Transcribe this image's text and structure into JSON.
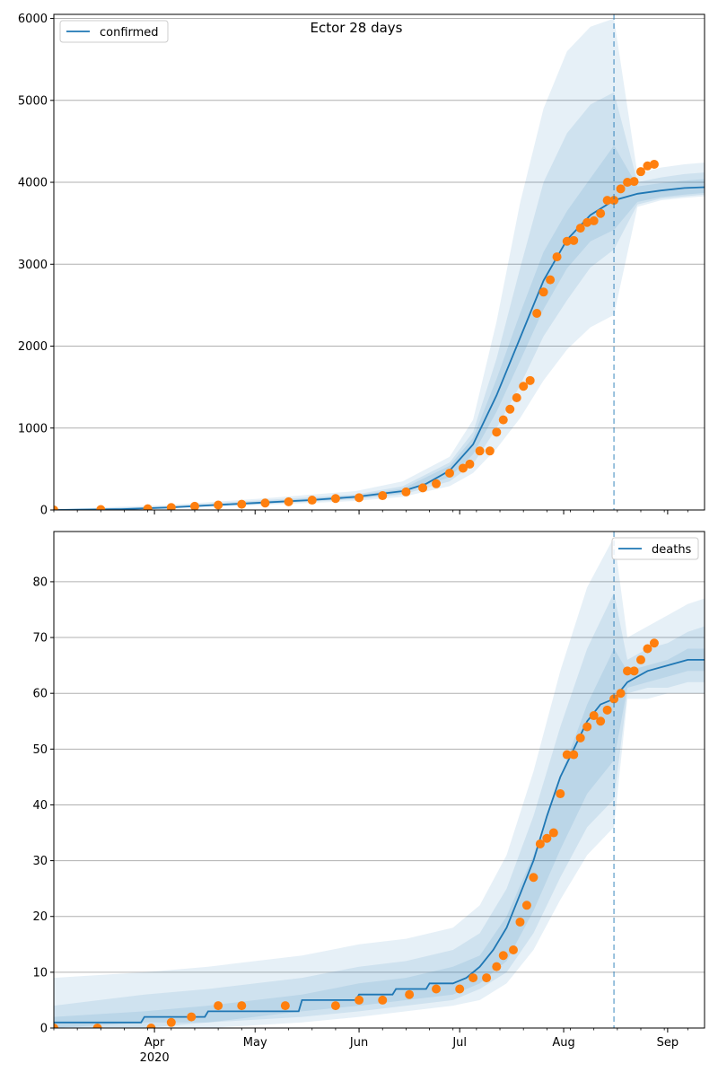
{
  "figure": {
    "title": "Ector 28 days"
  },
  "chart_data": [
    {
      "type": "line",
      "title": "Ector 28 days",
      "xlabel": "",
      "ylabel": "",
      "xlim": [
        "2020-03-02",
        "2020-09-12"
      ],
      "ylim": [
        0,
        6050
      ],
      "yticks": [
        0,
        1000,
        2000,
        3000,
        4000,
        5000,
        6000
      ],
      "grid": "horizontal",
      "legend": "top-left",
      "forecast_start": "2020-08-16",
      "series": [
        {
          "name": "confirmed",
          "color": "#1f77b4",
          "x": [
            "2020-03-02",
            "2020-03-22",
            "2020-04-05",
            "2020-04-19",
            "2020-05-03",
            "2020-05-17",
            "2020-05-31",
            "2020-06-14",
            "2020-06-21",
            "2020-06-28",
            "2020-07-05",
            "2020-07-12",
            "2020-07-19",
            "2020-07-26",
            "2020-08-02",
            "2020-08-09",
            "2020-08-16",
            "2020-08-23",
            "2020-08-30",
            "2020-09-06",
            "2020-09-12"
          ],
          "y": [
            0,
            10,
            30,
            60,
            90,
            120,
            160,
            230,
            320,
            480,
            800,
            1400,
            2100,
            2800,
            3300,
            3600,
            3780,
            3860,
            3900,
            3930,
            3940
          ]
        },
        {
          "name": "",
          "kind": "observed",
          "color": "#ff7f0e",
          "x": [
            "2020-03-02",
            "2020-03-16",
            "2020-03-30",
            "2020-04-06",
            "2020-04-13",
            "2020-04-20",
            "2020-04-27",
            "2020-05-04",
            "2020-05-11",
            "2020-05-18",
            "2020-05-25",
            "2020-06-01",
            "2020-06-08",
            "2020-06-15",
            "2020-06-20",
            "2020-06-24",
            "2020-06-28",
            "2020-07-02",
            "2020-07-04",
            "2020-07-07",
            "2020-07-10",
            "2020-07-12",
            "2020-07-14",
            "2020-07-16",
            "2020-07-18",
            "2020-07-20",
            "2020-07-22",
            "2020-07-24",
            "2020-07-26",
            "2020-07-28",
            "2020-07-30",
            "2020-08-02",
            "2020-08-04",
            "2020-08-06",
            "2020-08-08",
            "2020-08-10",
            "2020-08-12",
            "2020-08-14",
            "2020-08-16",
            "2020-08-18",
            "2020-08-20",
            "2020-08-22",
            "2020-08-24",
            "2020-08-26",
            "2020-08-28"
          ],
          "y": [
            0,
            5,
            15,
            30,
            45,
            60,
            70,
            85,
            100,
            120,
            140,
            150,
            175,
            220,
            270,
            320,
            450,
            510,
            560,
            720,
            720,
            950,
            1100,
            1230,
            1370,
            1510,
            1580,
            2400,
            2660,
            2810,
            3090,
            3280,
            3290,
            3440,
            3510,
            3530,
            3620,
            3780,
            3780,
            3920,
            4000,
            4010,
            4130,
            4200,
            4220
          ]
        }
      ],
      "bands": [
        {
          "color": "#1f77b4",
          "x": [
            "2020-03-02",
            "2020-04-05",
            "2020-05-03",
            "2020-05-31",
            "2020-06-14",
            "2020-06-28",
            "2020-07-05",
            "2020-07-12",
            "2020-07-19",
            "2020-07-26",
            "2020-08-02",
            "2020-08-09",
            "2020-08-16",
            "2020-08-23",
            "2020-08-30",
            "2020-09-06",
            "2020-09-12"
          ],
          "lower": [
            0,
            20,
            60,
            110,
            160,
            290,
            450,
            750,
            1120,
            1580,
            1960,
            2230,
            2380,
            3700,
            3780,
            3810,
            3830
          ],
          "upper": [
            10,
            60,
            140,
            230,
            350,
            650,
            1100,
            2300,
            3750,
            4900,
            5600,
            5900,
            6000,
            4100,
            4180,
            4220,
            4240
          ]
        },
        {
          "color": "#1f77b4",
          "x": [
            "2020-03-02",
            "2020-04-05",
            "2020-05-03",
            "2020-05-31",
            "2020-06-14",
            "2020-06-28",
            "2020-07-05",
            "2020-07-12",
            "2020-07-19",
            "2020-07-26",
            "2020-08-02",
            "2020-08-09",
            "2020-08-16",
            "2020-08-23",
            "2020-08-30",
            "2020-09-06",
            "2020-09-12"
          ],
          "lower": [
            0,
            25,
            70,
            130,
            190,
            350,
            560,
            1000,
            1520,
            2120,
            2560,
            2960,
            3180,
            3730,
            3800,
            3830,
            3850
          ],
          "upper": [
            5,
            45,
            120,
            190,
            290,
            580,
            950,
            1850,
            2950,
            4000,
            4600,
            4950,
            5100,
            4000,
            4060,
            4100,
            4120
          ]
        },
        {
          "color": "#1f77b4",
          "x": [
            "2020-03-02",
            "2020-04-05",
            "2020-05-03",
            "2020-05-31",
            "2020-06-14",
            "2020-06-28",
            "2020-07-05",
            "2020-07-12",
            "2020-07-19",
            "2020-07-26",
            "2020-08-02",
            "2020-08-09",
            "2020-08-16",
            "2020-08-23",
            "2020-08-30",
            "2020-09-06",
            "2020-09-12"
          ],
          "lower": [
            0,
            28,
            78,
            140,
            205,
            400,
            680,
            1200,
            1820,
            2450,
            2950,
            3280,
            3420,
            3760,
            3820,
            3850,
            3870
          ],
          "upper": [
            3,
            38,
            105,
            175,
            260,
            540,
            880,
            1600,
            2400,
            3150,
            3650,
            4050,
            4450,
            3950,
            3990,
            4020,
            4040
          ]
        }
      ]
    },
    {
      "type": "line",
      "title": "",
      "xlabel": "",
      "ylabel": "",
      "xlim": [
        "2020-03-02",
        "2020-09-12"
      ],
      "ylim": [
        0,
        89
      ],
      "yticks": [
        0,
        10,
        20,
        30,
        40,
        50,
        60,
        70,
        80
      ],
      "xticks": [
        "Apr",
        "May",
        "Jun",
        "Jul",
        "Aug",
        "Sep"
      ],
      "xtick_year": "2020",
      "grid": "horizontal",
      "legend": "top-right",
      "forecast_start": "2020-08-16",
      "series": [
        {
          "name": "deaths",
          "color": "#1f77b4",
          "x": [
            "2020-03-02",
            "2020-03-28",
            "2020-03-29",
            "2020-04-16",
            "2020-04-17",
            "2020-05-14",
            "2020-05-15",
            "2020-05-31",
            "2020-06-01",
            "2020-06-11",
            "2020-06-12",
            "2020-06-21",
            "2020-06-22",
            "2020-06-29",
            "2020-07-03",
            "2020-07-07",
            "2020-07-11",
            "2020-07-15",
            "2020-07-19",
            "2020-07-23",
            "2020-07-27",
            "2020-07-31",
            "2020-08-04",
            "2020-08-08",
            "2020-08-12",
            "2020-08-16",
            "2020-08-20",
            "2020-08-26",
            "2020-09-01",
            "2020-09-07",
            "2020-09-12"
          ],
          "y": [
            1,
            1,
            2,
            2,
            3,
            3,
            5,
            5,
            6,
            6,
            7,
            7,
            8,
            8,
            9,
            11,
            14,
            18,
            24,
            30,
            38,
            45,
            50,
            55,
            58,
            59,
            62,
            64,
            65,
            66,
            66
          ]
        },
        {
          "name": "",
          "kind": "observed",
          "color": "#ff7f0e",
          "x": [
            "2020-03-02",
            "2020-03-15",
            "2020-03-31",
            "2020-04-06",
            "2020-04-12",
            "2020-04-20",
            "2020-04-27",
            "2020-05-10",
            "2020-05-25",
            "2020-06-01",
            "2020-06-08",
            "2020-06-16",
            "2020-06-24",
            "2020-07-01",
            "2020-07-05",
            "2020-07-09",
            "2020-07-12",
            "2020-07-14",
            "2020-07-17",
            "2020-07-19",
            "2020-07-21",
            "2020-07-23",
            "2020-07-25",
            "2020-07-27",
            "2020-07-29",
            "2020-07-31",
            "2020-08-02",
            "2020-08-04",
            "2020-08-06",
            "2020-08-08",
            "2020-08-10",
            "2020-08-12",
            "2020-08-14",
            "2020-08-16",
            "2020-08-18",
            "2020-08-20",
            "2020-08-22",
            "2020-08-24",
            "2020-08-26",
            "2020-08-28"
          ],
          "y": [
            0,
            0,
            0,
            1,
            2,
            4,
            4,
            4,
            4,
            5,
            5,
            6,
            7,
            7,
            9,
            9,
            11,
            13,
            14,
            19,
            22,
            27,
            33,
            34,
            35,
            42,
            49,
            49,
            52,
            54,
            56,
            55,
            57,
            59,
            60,
            64,
            64,
            66,
            68,
            69
          ]
        }
      ],
      "bands": [
        {
          "color": "#1f77b4",
          "x": [
            "2020-03-02",
            "2020-03-29",
            "2020-04-17",
            "2020-05-15",
            "2020-06-01",
            "2020-06-15",
            "2020-06-29",
            "2020-07-07",
            "2020-07-15",
            "2020-07-23",
            "2020-07-31",
            "2020-08-08",
            "2020-08-16",
            "2020-08-20",
            "2020-08-26",
            "2020-09-01",
            "2020-09-07",
            "2020-09-12"
          ],
          "lower": [
            0,
            0,
            0,
            1,
            2,
            3,
            4,
            5,
            8,
            14,
            23,
            31,
            36,
            59,
            59,
            60,
            60,
            60
          ],
          "upper": [
            9,
            10,
            11,
            13,
            15,
            16,
            18,
            22,
            31,
            46,
            64,
            79,
            88,
            70,
            72,
            74,
            76,
            77
          ]
        },
        {
          "color": "#1f77b4",
          "x": [
            "2020-03-02",
            "2020-03-29",
            "2020-04-17",
            "2020-05-15",
            "2020-06-01",
            "2020-06-15",
            "2020-06-29",
            "2020-07-07",
            "2020-07-15",
            "2020-07-23",
            "2020-07-31",
            "2020-08-08",
            "2020-08-16",
            "2020-08-20",
            "2020-08-26",
            "2020-09-01",
            "2020-09-07",
            "2020-09-12"
          ],
          "lower": [
            0,
            0,
            1,
            2,
            3,
            4,
            5,
            7,
            10,
            17,
            27,
            36,
            41,
            60,
            61,
            61,
            62,
            62
          ],
          "upper": [
            4,
            6,
            7,
            9,
            11,
            12,
            14,
            17,
            25,
            38,
            54,
            68,
            78,
            66,
            68,
            69,
            71,
            72
          ]
        },
        {
          "color": "#1f77b4",
          "x": [
            "2020-03-02",
            "2020-03-29",
            "2020-04-17",
            "2020-05-15",
            "2020-06-01",
            "2020-06-15",
            "2020-06-29",
            "2020-07-07",
            "2020-07-15",
            "2020-07-23",
            "2020-07-31",
            "2020-08-08",
            "2020-08-16",
            "2020-08-20",
            "2020-08-26",
            "2020-09-01",
            "2020-09-07",
            "2020-09-12"
          ],
          "lower": [
            0,
            1,
            1,
            3,
            4,
            5,
            6,
            8,
            12,
            21,
            32,
            42,
            48,
            61,
            62,
            63,
            64,
            64
          ],
          "upper": [
            2,
            3,
            4,
            6,
            8,
            9,
            11,
            13,
            20,
            31,
            45,
            58,
            68,
            64,
            65,
            66,
            68,
            68
          ]
        }
      ]
    }
  ]
}
